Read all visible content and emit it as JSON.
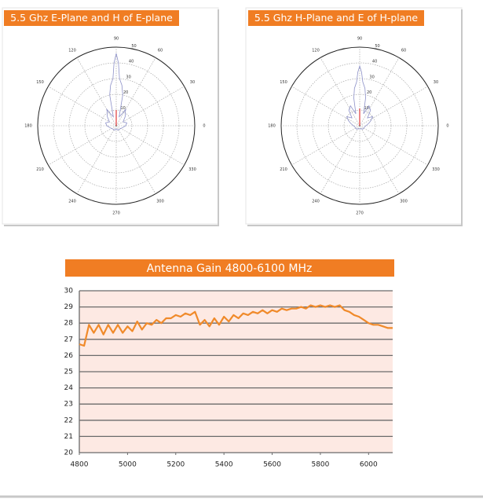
{
  "chart_data": [
    {
      "type": "polar",
      "title": "5.5 Ghz E-Plane and H of E-plane",
      "theta_ticks": [
        0,
        30,
        60,
        90,
        120,
        150,
        180,
        210,
        240,
        270,
        300,
        330
      ],
      "rlim": [
        0,
        50
      ],
      "rticks": [
        10,
        20,
        30,
        40,
        50
      ],
      "grid": true,
      "series": [
        {
          "color": "#8c90c8",
          "theta": [
            0,
            15,
            30,
            45,
            55,
            60,
            65,
            72,
            78,
            82,
            86,
            88,
            90,
            92,
            94,
            98,
            102,
            108,
            115,
            120,
            125,
            135,
            150,
            165,
            180,
            200,
            225,
            250,
            270,
            290,
            315,
            340
          ],
          "values": [
            6,
            7,
            5,
            8,
            10,
            12,
            8,
            6,
            20,
            26,
            30,
            40,
            46,
            40,
            30,
            26,
            20,
            6,
            8,
            12,
            10,
            8,
            5,
            7,
            6,
            4,
            3,
            3,
            2,
            3,
            3,
            4
          ]
        },
        {
          "color": "#e03a3a",
          "theta": [
            90,
            90
          ],
          "values": [
            0,
            10
          ]
        }
      ]
    },
    {
      "type": "polar",
      "title": "5.5 Ghz H-Plane and E of H-plane",
      "theta_ticks": [
        0,
        30,
        60,
        90,
        120,
        150,
        180,
        210,
        240,
        270,
        300,
        330
      ],
      "rlim": [
        0,
        50
      ],
      "rticks": [
        10,
        20,
        30,
        40,
        50
      ],
      "grid": true,
      "series": [
        {
          "color": "#8c90c8",
          "theta": [
            0,
            15,
            25,
            35,
            45,
            55,
            65,
            72,
            78,
            82,
            86,
            88,
            90,
            92,
            94,
            98,
            102,
            108,
            115,
            125,
            135,
            145,
            155,
            165,
            180,
            200,
            225,
            250,
            270,
            290,
            315,
            340
          ],
          "values": [
            4,
            6,
            8,
            10,
            7,
            12,
            14,
            8,
            18,
            24,
            28,
            34,
            38,
            34,
            28,
            24,
            18,
            8,
            14,
            12,
            7,
            10,
            8,
            6,
            4,
            3,
            3,
            2,
            2,
            2,
            3,
            3
          ]
        },
        {
          "color": "#e03a3a",
          "theta": [
            90,
            90
          ],
          "values": [
            0,
            11
          ]
        }
      ]
    },
    {
      "type": "line",
      "title": "Antenna Gain 4800-6100 MHz",
      "x": [
        4800,
        4820,
        4840,
        4860,
        4880,
        4900,
        4920,
        4940,
        4960,
        4980,
        5000,
        5020,
        5040,
        5060,
        5080,
        5100,
        5120,
        5140,
        5160,
        5180,
        5200,
        5220,
        5240,
        5260,
        5280,
        5300,
        5320,
        5340,
        5360,
        5380,
        5400,
        5420,
        5440,
        5460,
        5480,
        5500,
        5520,
        5540,
        5560,
        5580,
        5600,
        5620,
        5640,
        5660,
        5680,
        5700,
        5720,
        5740,
        5760,
        5780,
        5800,
        5820,
        5840,
        5860,
        5880,
        5900,
        5920,
        5940,
        5960,
        5980,
        6000,
        6020,
        6040,
        6060,
        6080,
        6100
      ],
      "values": [
        26.7,
        26.6,
        27.9,
        27.4,
        27.9,
        27.3,
        27.9,
        27.4,
        27.9,
        27.4,
        27.8,
        27.5,
        28.1,
        27.6,
        28.0,
        27.9,
        28.2,
        28.0,
        28.3,
        28.3,
        28.5,
        28.4,
        28.6,
        28.5,
        28.7,
        27.9,
        28.2,
        27.8,
        28.3,
        27.9,
        28.4,
        28.1,
        28.5,
        28.3,
        28.6,
        28.5,
        28.7,
        28.6,
        28.8,
        28.6,
        28.8,
        28.7,
        28.9,
        28.8,
        28.9,
        28.9,
        29.0,
        28.9,
        29.1,
        29.0,
        29.1,
        29.0,
        29.1,
        29.0,
        29.1,
        28.8,
        28.7,
        28.5,
        28.4,
        28.2,
        28.0,
        27.9,
        27.9,
        27.8,
        27.7,
        27.7
      ],
      "color": "#f08a2a",
      "background": "#fde9e3",
      "xlim": [
        4800,
        6100
      ],
      "xticks": [
        4800,
        5000,
        5200,
        5400,
        5600,
        5800,
        6000
      ],
      "ylim": [
        20,
        30
      ],
      "yticks": [
        20,
        21,
        22,
        23,
        24,
        25,
        26,
        27,
        28,
        29,
        30
      ],
      "grid": true
    }
  ]
}
